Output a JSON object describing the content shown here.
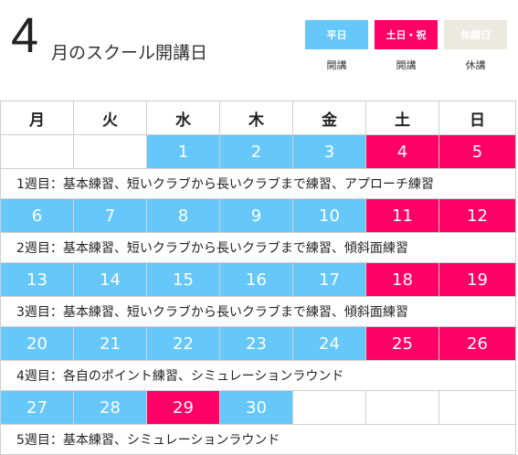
{
  "title": {
    "month": "4",
    "text": "月のスクール開講日"
  },
  "legend": [
    {
      "box": "平日",
      "caption": "開講",
      "bg": "#65c7fa",
      "fg": "#ffffff"
    },
    {
      "box": "土日・祝",
      "caption": "開講",
      "bg": "#ff0066",
      "fg": "#ffffff"
    },
    {
      "box": "休講日",
      "caption": "休講",
      "bg": "#ece9e1",
      "fg": "#ffffff"
    }
  ],
  "days": [
    "月",
    "火",
    "水",
    "木",
    "金",
    "土",
    "日"
  ],
  "weeks": [
    {
      "dates": [
        "",
        "",
        "1",
        "2",
        "3",
        "4",
        "5"
      ],
      "note": "1週目：基本練習、短いクラブから長いクラブまで練習、アプローチ練習"
    },
    {
      "dates": [
        "6",
        "7",
        "8",
        "9",
        "10",
        "11",
        "12"
      ],
      "note": "2週目：基本練習、短いクラブから長いクラブまで練習、傾斜面練習"
    },
    {
      "dates": [
        "13",
        "14",
        "15",
        "16",
        "17",
        "18",
        "19"
      ],
      "note": "3週目：基本練習、短いクラブから長いクラブまで練習、傾斜面練習"
    },
    {
      "dates": [
        "20",
        "21",
        "22",
        "23",
        "24",
        "25",
        "26"
      ],
      "note": "4週目：各自のポイント練習、シミュレーションラウンド"
    },
    {
      "dates": [
        "27",
        "28",
        "29",
        "30",
        "",
        "",
        ""
      ],
      "note": "5週目：基本練習、シミュレーションラウンド"
    }
  ],
  "cell_types": [
    [
      "empty",
      "empty",
      "weekday",
      "weekday",
      "weekday",
      "holiday",
      "holiday"
    ],
    [
      "weekday",
      "weekday",
      "weekday",
      "weekday",
      "weekday",
      "holiday",
      "holiday"
    ],
    [
      "weekday",
      "weekday",
      "weekday",
      "weekday",
      "weekday",
      "holiday",
      "holiday"
    ],
    [
      "weekday",
      "weekday",
      "weekday",
      "weekday",
      "weekday",
      "holiday",
      "holiday"
    ],
    [
      "weekday",
      "weekday",
      "holiday",
      "weekday",
      "empty",
      "empty",
      "empty"
    ]
  ]
}
